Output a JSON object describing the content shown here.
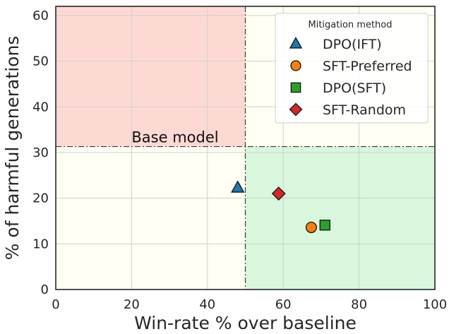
{
  "chart_data": {
    "type": "scatter",
    "title": "",
    "xlabel": "Win-rate % over baseline",
    "ylabel": "% of harmful generations",
    "xlim": [
      0,
      100
    ],
    "ylim": [
      0,
      62
    ],
    "xticks": [
      0,
      20,
      40,
      60,
      80,
      100
    ],
    "yticks": [
      0,
      10,
      20,
      30,
      40,
      50,
      60
    ],
    "grid": true,
    "baseline": {
      "x": 50,
      "y": 31.3,
      "label": "Base model"
    },
    "regions": {
      "harmful": "#fdd9d3",
      "neutral": "#fffff4",
      "good": "#d9f7dc"
    },
    "legend": {
      "title": "Mitigation method",
      "position": "top-right"
    },
    "series": [
      {
        "name": "DPO(IFT)",
        "marker": "triangle",
        "color": "#1f77b4",
        "x": 48,
        "y": 22.3
      },
      {
        "name": "SFT-Preferred",
        "marker": "circle",
        "color": "#ff7f0e",
        "x": 67.4,
        "y": 13.6
      },
      {
        "name": "DPO(SFT)",
        "marker": "square",
        "color": "#2ca02c",
        "x": 71,
        "y": 14.1
      },
      {
        "name": "SFT-Random",
        "marker": "diamond",
        "color": "#d62728",
        "x": 58.8,
        "y": 21
      }
    ]
  }
}
